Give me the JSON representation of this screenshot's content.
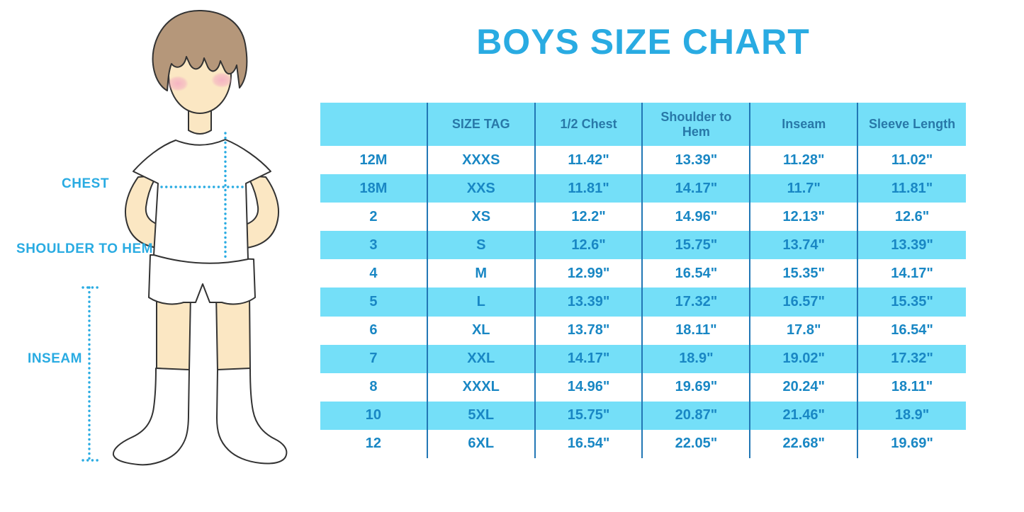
{
  "title": "BOYS SIZE CHART",
  "colors": {
    "accent_blue": "#29ABE2",
    "table_band_cyan": "#74DFF8",
    "table_body_text": "#1987C4",
    "table_header_text": "#2878A8",
    "column_separator": "#2277B5",
    "skin": "#FBE7C3",
    "hair": "#B5977A",
    "blush_pink": "#F4AEC2",
    "outline": "#333333"
  },
  "figure_labels": {
    "chest": "CHEST",
    "shoulder_to_hem": "SHOULDER TO HEM",
    "inseam": "INSEAM"
  },
  "chart_data": {
    "type": "table",
    "title": "BOYS SIZE CHART",
    "columns": [
      "",
      "SIZE TAG",
      "1/2 Chest",
      "Shoulder to Hem",
      "Inseam",
      "Sleeve Length"
    ],
    "rows": [
      [
        "12M",
        "XXXS",
        "11.42\"",
        "13.39\"",
        "11.28\"",
        "11.02\""
      ],
      [
        "18M",
        "XXS",
        "11.81\"",
        "14.17\"",
        "11.7\"",
        "11.81\""
      ],
      [
        "2",
        "XS",
        "12.2\"",
        "14.96\"",
        "12.13\"",
        "12.6\""
      ],
      [
        "3",
        "S",
        "12.6\"",
        "15.75\"",
        "13.74\"",
        "13.39\""
      ],
      [
        "4",
        "M",
        "12.99\"",
        "16.54\"",
        "15.35\"",
        "14.17\""
      ],
      [
        "5",
        "L",
        "13.39\"",
        "17.32\"",
        "16.57\"",
        "15.35\""
      ],
      [
        "6",
        "XL",
        "13.78\"",
        "18.11\"",
        "17.8\"",
        "16.54\""
      ],
      [
        "7",
        "XXL",
        "14.17\"",
        "18.9\"",
        "19.02\"",
        "17.32\""
      ],
      [
        "8",
        "XXXL",
        "14.96\"",
        "19.69\"",
        "20.24\"",
        "18.11\""
      ],
      [
        "10",
        "5XL",
        "15.75\"",
        "20.87\"",
        "21.46\"",
        "18.9\""
      ],
      [
        "12",
        "6XL",
        "16.54\"",
        "22.05\"",
        "22.68\"",
        "19.69\""
      ]
    ],
    "striping": "alternating white and cyan rows, header cyan",
    "legend_position": "none",
    "grid": "vertical separators only"
  }
}
